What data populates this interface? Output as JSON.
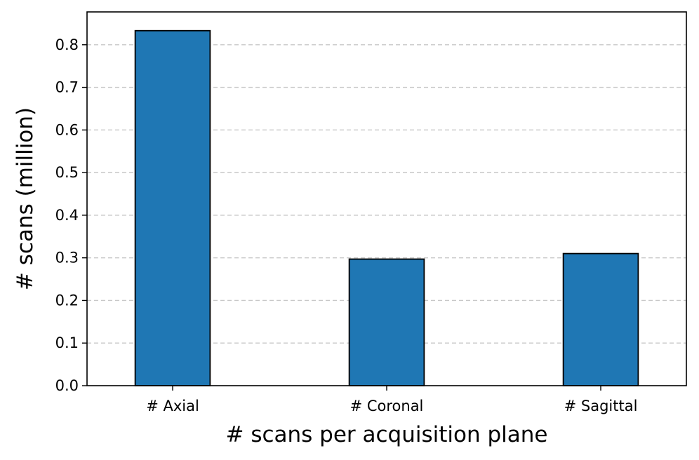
{
  "chart_data": {
    "type": "bar",
    "categories": [
      "# Axial",
      "# Coronal",
      "# Sagittal"
    ],
    "values": [
      0.833,
      0.297,
      0.31
    ],
    "title": "",
    "xlabel": "# scans per acquisition plane",
    "ylabel": "# scans (million)",
    "ylim": [
      0,
      0.877
    ],
    "yticks": [
      0.0,
      0.1,
      0.2,
      0.3,
      0.4,
      0.5,
      0.6,
      0.7,
      0.8
    ],
    "ytick_labels": [
      "0.0",
      "0.1",
      "0.2",
      "0.3",
      "0.4",
      "0.5",
      "0.6",
      "0.7",
      "0.8"
    ],
    "grid": "y, dashed",
    "bar_color": "#1f77b4",
    "bar_edge_color": "#000000",
    "grid_color": "#c8c8c8"
  }
}
